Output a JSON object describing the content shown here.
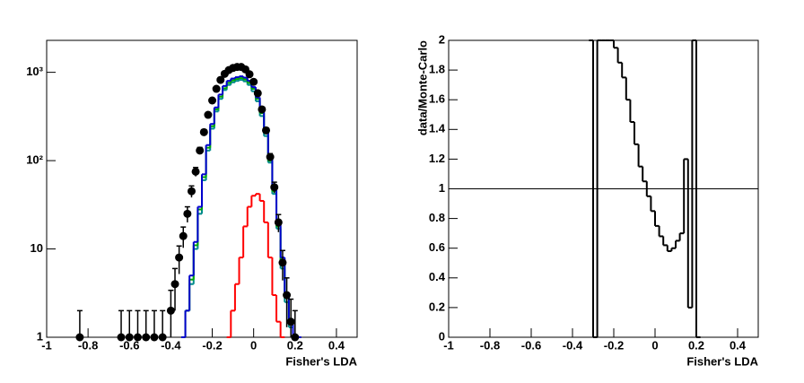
{
  "chart_data": [
    {
      "type": "line",
      "xlabel": "Fisher's LDA",
      "ylog": true,
      "xlim": [
        -1,
        0.5
      ],
      "xticks": [
        -1,
        -0.8,
        -0.6,
        -0.4,
        -0.2,
        0,
        0.2,
        0.4
      ],
      "ylim": [
        1,
        2300
      ],
      "yticks": [
        1,
        10,
        {
          "value": 100,
          "label": "10²"
        },
        {
          "value": 1000,
          "label": "10³"
        }
      ],
      "series": [
        {
          "style": "step",
          "color": "#008b8b",
          "x": [
            -0.34,
            -0.32,
            -0.3,
            -0.28,
            -0.26,
            -0.24,
            -0.22,
            -0.2,
            -0.18,
            -0.16,
            -0.14,
            -0.12,
            -0.1,
            -0.08,
            -0.06,
            -0.04,
            -0.02,
            0,
            0.02,
            0.04,
            0.06,
            0.08,
            0.1,
            0.12,
            0.14,
            0.16,
            0.18,
            0.2
          ],
          "values": [
            1,
            2,
            4,
            10,
            25,
            60,
            130,
            230,
            360,
            500,
            630,
            720,
            770,
            800,
            820,
            790,
            720,
            610,
            470,
            320,
            190,
            95,
            42,
            17,
            6,
            2.5,
            1.3,
            1
          ]
        },
        {
          "style": "step",
          "color": "#00aa00",
          "x": [
            -0.34,
            -0.32,
            -0.3,
            -0.28,
            -0.26,
            -0.24,
            -0.22,
            -0.2,
            -0.18,
            -0.16,
            -0.14,
            -0.12,
            -0.1,
            -0.08,
            -0.06,
            -0.04,
            -0.02,
            0,
            0.02,
            0.04,
            0.06,
            0.08,
            0.1,
            0.12,
            0.14,
            0.16,
            0.18,
            0.2
          ],
          "values": [
            1,
            2,
            4.5,
            11,
            28,
            65,
            140,
            245,
            380,
            530,
            660,
            760,
            810,
            840,
            860,
            830,
            760,
            650,
            500,
            345,
            205,
            100,
            45,
            18,
            7,
            2.8,
            1.4,
            1
          ]
        },
        {
          "style": "step",
          "color": "#0000cc",
          "x": [
            -0.34,
            -0.32,
            -0.3,
            -0.28,
            -0.26,
            -0.24,
            -0.22,
            -0.2,
            -0.18,
            -0.16,
            -0.14,
            -0.12,
            -0.1,
            -0.08,
            -0.06,
            -0.04,
            -0.02,
            0,
            0.02,
            0.04,
            0.06,
            0.08,
            0.1,
            0.12,
            0.14,
            0.16,
            0.18,
            0.2,
            0.22
          ],
          "values": [
            1,
            2,
            5,
            12,
            30,
            70,
            150,
            260,
            400,
            560,
            700,
            800,
            850,
            880,
            900,
            870,
            800,
            680,
            520,
            360,
            220,
            110,
            50,
            20,
            8,
            3,
            1.5,
            1,
            1
          ]
        },
        {
          "style": "step",
          "color": "#ff0000",
          "x": [
            -0.12,
            -0.1,
            -0.08,
            -0.06,
            -0.04,
            -0.02,
            0,
            0.02,
            0.04,
            0.06,
            0.08,
            0.1,
            0.12,
            0.14
          ],
          "values": [
            1,
            2,
            4,
            8,
            18,
            30,
            40,
            42,
            35,
            20,
            8,
            3,
            1.5,
            1
          ]
        },
        {
          "style": "markers",
          "color": "#000000",
          "x": [
            -0.84,
            -0.64,
            -0.6,
            -0.56,
            -0.52,
            -0.48,
            -0.44,
            -0.4,
            -0.38,
            -0.36,
            -0.34,
            -0.32,
            -0.3,
            -0.28,
            -0.26,
            -0.24,
            -0.22,
            -0.2,
            -0.18,
            -0.16,
            -0.14,
            -0.12,
            -0.1,
            -0.08,
            -0.06,
            -0.04,
            -0.02,
            0,
            0.02,
            0.04,
            0.06,
            0.08,
            0.1,
            0.12,
            0.14,
            0.16,
            0.18,
            0.2
          ],
          "values": [
            1,
            1,
            1,
            1,
            1,
            1,
            1,
            2,
            4,
            8,
            14,
            25,
            45,
            75,
            130,
            210,
            330,
            480,
            650,
            820,
            960,
            1060,
            1120,
            1150,
            1150,
            1080,
            950,
            780,
            580,
            380,
            220,
            110,
            50,
            20,
            7,
            3,
            1.5,
            1
          ],
          "errors": [
            1,
            1,
            1,
            1,
            1,
            1,
            1,
            1.4,
            2,
            2.8,
            3.7,
            5,
            6.7,
            8.7,
            11,
            14,
            18,
            22,
            25,
            29,
            31,
            33,
            33,
            34,
            34,
            33,
            31,
            28,
            24,
            19,
            15,
            10,
            7,
            4.5,
            2.6,
            1.7,
            1.2,
            1
          ]
        }
      ]
    },
    {
      "type": "line",
      "xlabel": "Fisher's LDA",
      "ylabel": "data/Monte-Carlo",
      "ylog": false,
      "xlim": [
        -1,
        0.5
      ],
      "xticks": [
        -1,
        -0.8,
        -0.6,
        -0.4,
        -0.2,
        0,
        0.2,
        0.4
      ],
      "ylim": [
        0,
        2
      ],
      "yticks": [
        0,
        0.2,
        0.4,
        0.6,
        0.8,
        1,
        1.2,
        1.4,
        1.6,
        1.8,
        2
      ],
      "hline": 1,
      "series": [
        {
          "style": "step",
          "color": "#000000",
          "x": [
            -0.31,
            -0.29,
            -0.27,
            -0.25,
            -0.23,
            -0.21,
            -0.19,
            -0.17,
            -0.15,
            -0.13,
            -0.11,
            -0.09,
            -0.07,
            -0.05,
            -0.03,
            -0.01,
            0.01,
            0.03,
            0.05,
            0.07,
            0.09,
            0.11,
            0.13,
            0.15,
            0.17,
            0.19,
            0.21
          ],
          "values": [
            2,
            0,
            2,
            2,
            2,
            2,
            1.95,
            1.85,
            1.75,
            1.6,
            1.45,
            1.3,
            1.15,
            1.05,
            0.95,
            0.85,
            0.75,
            0.68,
            0.62,
            0.58,
            0.6,
            0.65,
            0.7,
            1.2,
            0.2,
            2,
            0
          ]
        }
      ]
    }
  ]
}
